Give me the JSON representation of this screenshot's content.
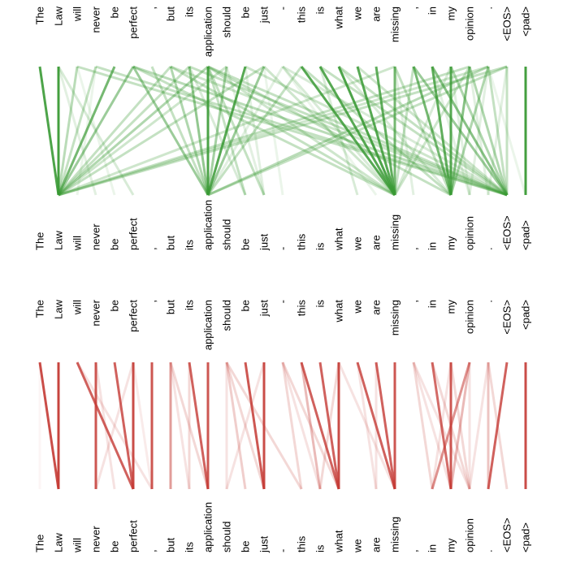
{
  "tokens": [
    "The",
    "Law",
    "will",
    "never",
    "be",
    "perfect",
    ",",
    "but",
    "its",
    "application",
    "should",
    "be",
    "just",
    "-",
    "this",
    "is",
    "what",
    "we",
    "are",
    "missing",
    ",",
    "in",
    "my",
    "opinion",
    ".",
    "<EOS>",
    "<pad>"
  ],
  "colors": {
    "top": "#3a9a35",
    "bottom": "#c43a34"
  },
  "panels": [
    {
      "id": "top",
      "color_key": "top",
      "links": [
        [
          0,
          1,
          0.9
        ],
        [
          1,
          1,
          0.95
        ],
        [
          2,
          1,
          0.35
        ],
        [
          3,
          1,
          0.3
        ],
        [
          4,
          1,
          0.7
        ],
        [
          5,
          1,
          0.5
        ],
        [
          7,
          1,
          0.3
        ],
        [
          8,
          1,
          0.3
        ],
        [
          9,
          1,
          0.4
        ],
        [
          10,
          1,
          0.25
        ],
        [
          12,
          1,
          0.3
        ],
        [
          19,
          1,
          0.25
        ],
        [
          23,
          1,
          0.3
        ],
        [
          24,
          1,
          0.25
        ],
        [
          25,
          1,
          0.3
        ],
        [
          1,
          3,
          0.15
        ],
        [
          1,
          5,
          0.2
        ],
        [
          2,
          4,
          0.1
        ],
        [
          3,
          2,
          0.1
        ],
        [
          5,
          9,
          0.5
        ],
        [
          6,
          9,
          0.3
        ],
        [
          7,
          9,
          0.4
        ],
        [
          8,
          9,
          0.55
        ],
        [
          9,
          9,
          0.9
        ],
        [
          10,
          9,
          0.45
        ],
        [
          11,
          9,
          0.85
        ],
        [
          12,
          9,
          0.5
        ],
        [
          13,
          9,
          0.15
        ],
        [
          14,
          9,
          0.3
        ],
        [
          24,
          9,
          0.35
        ],
        [
          25,
          9,
          0.3
        ],
        [
          9,
          11,
          0.3
        ],
        [
          9,
          12,
          0.3
        ],
        [
          10,
          12,
          0.15
        ],
        [
          8,
          11,
          0.2
        ],
        [
          11,
          12,
          0.15
        ],
        [
          12,
          13,
          0.1
        ],
        [
          5,
          19,
          0.3
        ],
        [
          7,
          19,
          0.3
        ],
        [
          9,
          19,
          0.25
        ],
        [
          12,
          19,
          0.25
        ],
        [
          13,
          19,
          0.2
        ],
        [
          14,
          19,
          0.85
        ],
        [
          15,
          19,
          0.85
        ],
        [
          16,
          19,
          0.9
        ],
        [
          17,
          19,
          0.85
        ],
        [
          18,
          19,
          0.8
        ],
        [
          19,
          19,
          0.7
        ],
        [
          20,
          19,
          0.3
        ],
        [
          22,
          19,
          0.2
        ],
        [
          23,
          19,
          0.25
        ],
        [
          15,
          17,
          0.2
        ],
        [
          19,
          20,
          0.15
        ],
        [
          13,
          18,
          0.1
        ],
        [
          9,
          22,
          0.3
        ],
        [
          14,
          22,
          0.3
        ],
        [
          19,
          22,
          0.3
        ],
        [
          20,
          22,
          0.7
        ],
        [
          21,
          22,
          0.8
        ],
        [
          22,
          22,
          0.85
        ],
        [
          23,
          22,
          0.6
        ],
        [
          24,
          22,
          0.4
        ],
        [
          16,
          22,
          0.2
        ],
        [
          2,
          25,
          0.3
        ],
        [
          3,
          25,
          0.3
        ],
        [
          5,
          25,
          0.35
        ],
        [
          7,
          25,
          0.25
        ],
        [
          8,
          25,
          0.3
        ],
        [
          9,
          25,
          0.3
        ],
        [
          11,
          25,
          0.25
        ],
        [
          13,
          25,
          0.2
        ],
        [
          15,
          25,
          0.3
        ],
        [
          16,
          25,
          0.3
        ],
        [
          17,
          25,
          0.25
        ],
        [
          20,
          25,
          0.5
        ],
        [
          21,
          25,
          0.6
        ],
        [
          22,
          25,
          0.4
        ],
        [
          23,
          25,
          0.4
        ],
        [
          24,
          25,
          0.3
        ],
        [
          25,
          25,
          0.3
        ],
        [
          23,
          24,
          0.15
        ],
        [
          22,
          23,
          0.15
        ],
        [
          25,
          24,
          0.15
        ],
        [
          24,
          23,
          0.15
        ],
        [
          24,
          26,
          0.1
        ],
        [
          21,
          23,
          0.15
        ],
        [
          26,
          26,
          0.95
        ]
      ]
    },
    {
      "id": "bottom",
      "color_key": "bottom",
      "links": [
        [
          0,
          1,
          0.9
        ],
        [
          1,
          1,
          0.95
        ],
        [
          0,
          0,
          0.05
        ],
        [
          2,
          5,
          0.8
        ],
        [
          3,
          3,
          0.85
        ],
        [
          3,
          4,
          0.15
        ],
        [
          4,
          5,
          0.8
        ],
        [
          5,
          5,
          0.9
        ],
        [
          2,
          6,
          0.15
        ],
        [
          5,
          6,
          0.1
        ],
        [
          5,
          3,
          0.15
        ],
        [
          6,
          6,
          0.85
        ],
        [
          7,
          7,
          0.5
        ],
        [
          7,
          9,
          0.2
        ],
        [
          8,
          9,
          0.8
        ],
        [
          9,
          9,
          0.85
        ],
        [
          8,
          8,
          0.2
        ],
        [
          7,
          8,
          0.15
        ],
        [
          10,
          11,
          0.25
        ],
        [
          10,
          12,
          0.2
        ],
        [
          10,
          14,
          0.2
        ],
        [
          11,
          12,
          0.85
        ],
        [
          12,
          12,
          0.9
        ],
        [
          10,
          10,
          0.15
        ],
        [
          12,
          10,
          0.15
        ],
        [
          13,
          14,
          0.2
        ],
        [
          13,
          16,
          0.2
        ],
        [
          14,
          16,
          0.8
        ],
        [
          14,
          15,
          0.35
        ],
        [
          15,
          16,
          0.8
        ],
        [
          16,
          16,
          0.9
        ],
        [
          16,
          15,
          0.2
        ],
        [
          13,
          15,
          0.15
        ],
        [
          17,
          19,
          0.8
        ],
        [
          18,
          19,
          0.8
        ],
        [
          19,
          19,
          0.85
        ],
        [
          16,
          19,
          0.15
        ],
        [
          17,
          18,
          0.15
        ],
        [
          18,
          18,
          0.15
        ],
        [
          20,
          21,
          0.2
        ],
        [
          20,
          22,
          0.15
        ],
        [
          20,
          23,
          0.15
        ],
        [
          21,
          22,
          0.75
        ],
        [
          21,
          23,
          0.2
        ],
        [
          22,
          22,
          0.85
        ],
        [
          22,
          23,
          0.2
        ],
        [
          23,
          21,
          0.55
        ],
        [
          23,
          22,
          0.35
        ],
        [
          22,
          21,
          0.15
        ],
        [
          24,
          24,
          0.3
        ],
        [
          24,
          25,
          0.2
        ],
        [
          25,
          24,
          0.8
        ],
        [
          24,
          23,
          0.15
        ],
        [
          23,
          23,
          0.15
        ],
        [
          26,
          26,
          0.9
        ]
      ]
    }
  ]
}
